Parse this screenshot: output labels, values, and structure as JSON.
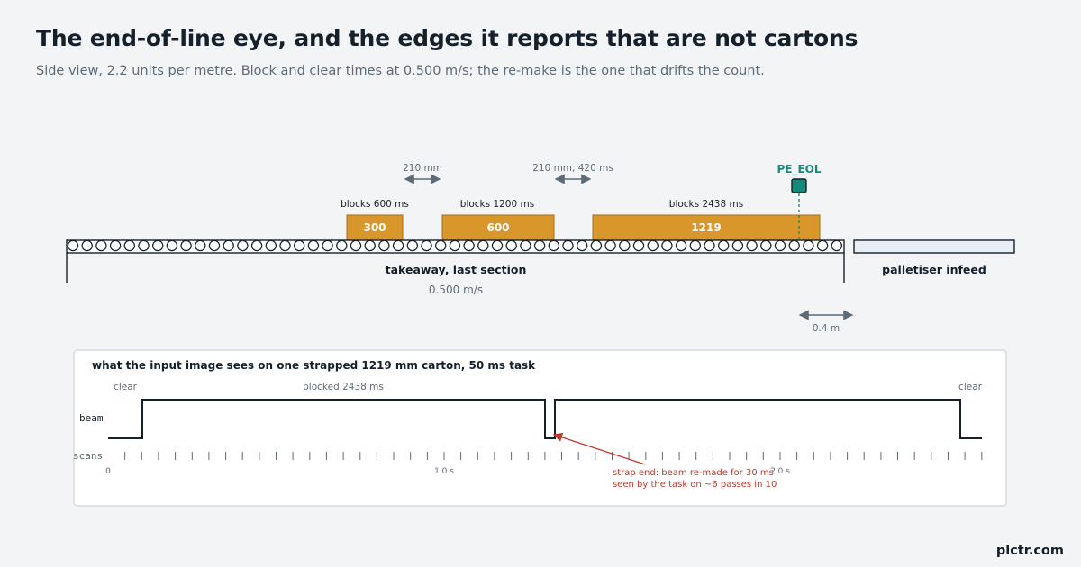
{
  "header": {
    "title": "The end-of-line eye, and the edges it reports that are not cartons",
    "subtitle": "Side view, 2.2 units per metre. Block and clear times at 0.500 m/s; the re-make is the one that drifts the count."
  },
  "colors": {
    "carton": "#d9962b",
    "sensor": "#168a78",
    "ink": "#15202b",
    "muted": "#5d6a77",
    "annotation": "#c0392b"
  },
  "conveyor": {
    "takeaway_label": "takeaway, last section",
    "speed_label": "0.500 m/s",
    "infeed_label": "palletiser infeed",
    "offset_label": "0.4 m"
  },
  "sensor": {
    "label": "PE_EOL",
    "icon": "photo-eye-icon"
  },
  "cartons": [
    {
      "length_label": "300",
      "block_label": "blocks 600 ms"
    },
    {
      "length_label": "600",
      "block_label": "blocks 1200 ms"
    },
    {
      "length_label": "1219",
      "block_label": "blocks 2438 ms"
    }
  ],
  "gaps": [
    {
      "label": "210 mm"
    },
    {
      "label": "210 mm, 420 ms"
    }
  ],
  "timing": {
    "panel_title": "what the input image sees on one strapped 1219 mm carton, 50 ms task",
    "clear_left": "clear",
    "blocked_label": "blocked 2438 ms",
    "clear_right": "clear",
    "beam_label": "beam",
    "scans_label": "scans",
    "tick_0": "0",
    "tick_1": "1.0 s",
    "tick_2": "2.0 s",
    "note_line1": "strap end: beam re-made for 30 ms",
    "note_line2": "seen by the task on ~6 passes in 10"
  },
  "brand": "plctr.com"
}
